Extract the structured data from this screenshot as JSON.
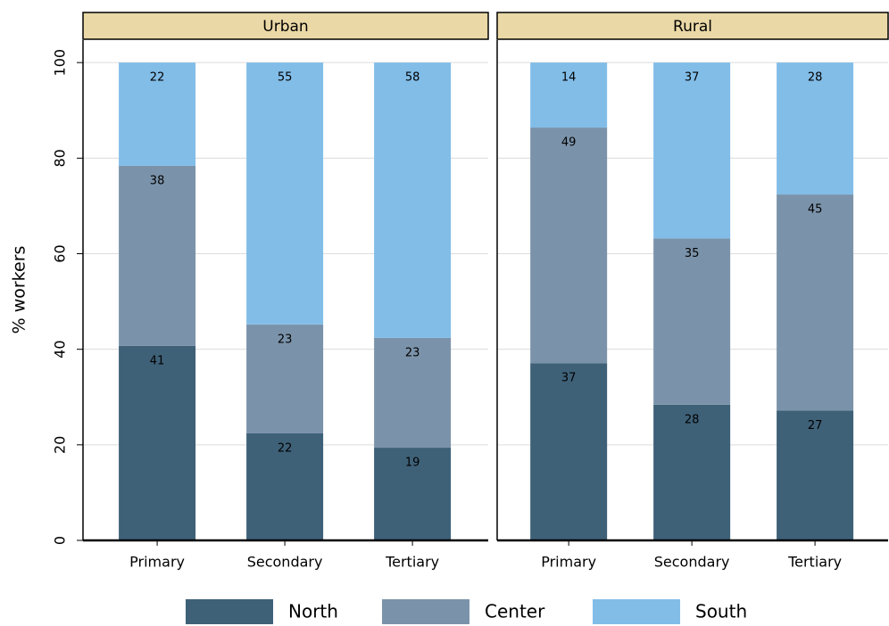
{
  "chart_data": {
    "type": "bar",
    "stacked": true,
    "ylabel": "% workers",
    "ylim": [
      0,
      104.7
    ],
    "yticks": [
      0,
      20,
      40,
      60,
      80,
      100
    ],
    "grid": true,
    "legend": "bottom",
    "legend_items": [
      {
        "name": "North",
        "color": "#3e6178"
      },
      {
        "name": "Center",
        "color": "#7b93aa"
      },
      {
        "name": "South",
        "color": "#82bde8"
      }
    ],
    "panels": [
      {
        "title": "Urban",
        "categories": [
          "Primary",
          "Secondary",
          "Tertiary"
        ],
        "series": [
          {
            "values": [
              40.7,
              22.4,
              19.4
            ],
            "value_labels": [
              "41",
              "22",
              "19"
            ]
          },
          {
            "values": [
              37.7,
              22.8,
              23.0
            ],
            "value_labels": [
              "38",
              "23",
              "23"
            ]
          },
          {
            "values": [
              21.6,
              54.8,
              57.6
            ],
            "value_labels": [
              "22",
              "55",
              "58"
            ]
          }
        ]
      },
      {
        "title": "Rural",
        "categories": [
          "Primary",
          "Secondary",
          "Tertiary"
        ],
        "series": [
          {
            "values": [
              37.1,
              28.4,
              27.2
            ],
            "value_labels": [
              "37",
              "28",
              "27"
            ]
          },
          {
            "values": [
              49.3,
              34.8,
              45.2
            ],
            "value_labels": [
              "49",
              "35",
              "45"
            ]
          },
          {
            "values": [
              13.6,
              36.8,
              27.6
            ],
            "value_labels": [
              "14",
              "37",
              "28"
            ]
          }
        ]
      }
    ]
  }
}
